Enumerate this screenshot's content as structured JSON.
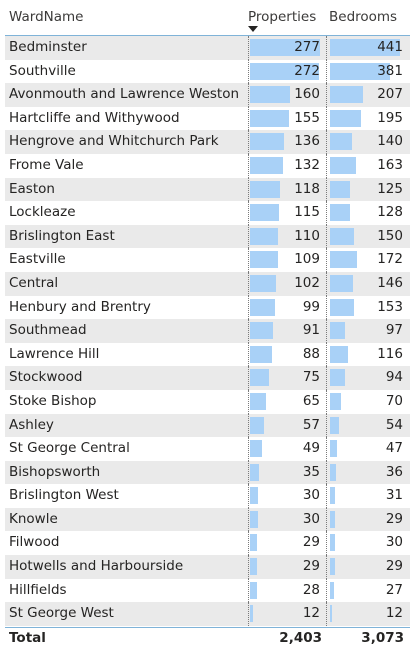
{
  "columns": {
    "ward": "WardName",
    "properties": "Properties",
    "bedrooms": "Bedrooms"
  },
  "rows": [
    {
      "ward": "Bedminster",
      "properties": "277",
      "bedrooms": "441"
    },
    {
      "ward": "Southville",
      "properties": "272",
      "bedrooms": "381"
    },
    {
      "ward": "Avonmouth and Lawrence Weston",
      "properties": "160",
      "bedrooms": "207"
    },
    {
      "ward": "Hartcliffe and Withywood",
      "properties": "155",
      "bedrooms": "195"
    },
    {
      "ward": "Hengrove and Whitchurch Park",
      "properties": "136",
      "bedrooms": "140"
    },
    {
      "ward": "Frome Vale",
      "properties": "132",
      "bedrooms": "163"
    },
    {
      "ward": "Easton",
      "properties": "118",
      "bedrooms": "125"
    },
    {
      "ward": "Lockleaze",
      "properties": "115",
      "bedrooms": "128"
    },
    {
      "ward": "Brislington East",
      "properties": "110",
      "bedrooms": "150"
    },
    {
      "ward": "Eastville",
      "properties": "109",
      "bedrooms": "172"
    },
    {
      "ward": "Central",
      "properties": "102",
      "bedrooms": "146"
    },
    {
      "ward": "Henbury and Brentry",
      "properties": "99",
      "bedrooms": "153"
    },
    {
      "ward": "Southmead",
      "properties": "91",
      "bedrooms": "97"
    },
    {
      "ward": "Lawrence Hill",
      "properties": "88",
      "bedrooms": "116"
    },
    {
      "ward": "Stockwood",
      "properties": "75",
      "bedrooms": "94"
    },
    {
      "ward": "Stoke Bishop",
      "properties": "65",
      "bedrooms": "70"
    },
    {
      "ward": "Ashley",
      "properties": "57",
      "bedrooms": "54"
    },
    {
      "ward": "St George Central",
      "properties": "49",
      "bedrooms": "47"
    },
    {
      "ward": "Bishopsworth",
      "properties": "35",
      "bedrooms": "36"
    },
    {
      "ward": "Brislington West",
      "properties": "30",
      "bedrooms": "31"
    },
    {
      "ward": "Knowle",
      "properties": "30",
      "bedrooms": "29"
    },
    {
      "ward": "Filwood",
      "properties": "29",
      "bedrooms": "30"
    },
    {
      "ward": "Hotwells and Harbourside",
      "properties": "29",
      "bedrooms": "29"
    },
    {
      "ward": "Hillfields",
      "properties": "28",
      "bedrooms": "27"
    },
    {
      "ward": "St George West",
      "properties": "12",
      "bedrooms": "12"
    }
  ],
  "total": {
    "label": "Total",
    "properties": "2,403",
    "bedrooms": "3,073"
  },
  "sort": {
    "column": "properties",
    "direction": "descending"
  },
  "colors": {
    "bar": "#a9d1f7",
    "alt_row": "#eaeaea",
    "header_line": "#7fb3d8"
  }
}
